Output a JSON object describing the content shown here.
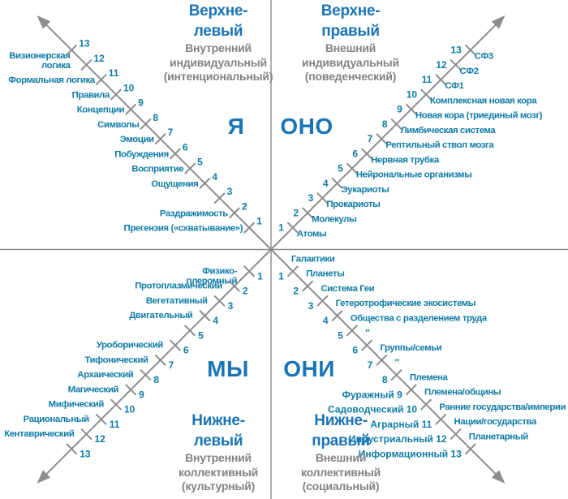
{
  "colors": {
    "title_blue": "#1a74b6",
    "label_teal": "#0e7ba6",
    "subtitle_gray": "#818285",
    "line_gray": "#8a8c8e"
  },
  "quadrants": {
    "upper_left": {
      "title_lines": [
        "Верхне-",
        "левый"
      ],
      "subtitle_lines": [
        "Внутренний",
        "индивидуальный",
        "(интенциональный)"
      ],
      "pronoun": "Я",
      "ticks": [
        {
          "n": 1,
          "label": "Прегензия («схватывание»)"
        },
        {
          "n": 2,
          "label": "Раздражимость"
        },
        {
          "n": 3,
          "label": ""
        },
        {
          "n": 4,
          "label": "Ощущения"
        },
        {
          "n": 5,
          "label": "Восприятие"
        },
        {
          "n": 6,
          "label": "Побуждения"
        },
        {
          "n": 7,
          "label": "Эмоции"
        },
        {
          "n": 8,
          "label": "Символы"
        },
        {
          "n": 9,
          "label": "Концепции"
        },
        {
          "n": 10,
          "label": "Правила"
        },
        {
          "n": 11,
          "label": "Формальная логика"
        },
        {
          "n": 12,
          "label_lines": [
            "Визионерская",
            "логика"
          ]
        },
        {
          "n": 13,
          "label": ""
        }
      ]
    },
    "upper_right": {
      "title_lines": [
        "Верхне-",
        "правый"
      ],
      "subtitle_lines": [
        "Внешний",
        "индивидуальный",
        "(поведенческий)"
      ],
      "pronoun": "ОНО",
      "ticks": [
        {
          "n": 1,
          "label": "Атомы"
        },
        {
          "n": 2,
          "label": "Молекулы"
        },
        {
          "n": 3,
          "label": "Прокариоты"
        },
        {
          "n": 4,
          "label": "Эукариоты"
        },
        {
          "n": 5,
          "label": "Нейрональные организмы"
        },
        {
          "n": 6,
          "label": "Нервная трубка"
        },
        {
          "n": 7,
          "label": "Рептильный ствол мозга"
        },
        {
          "n": 8,
          "label": "Лимбическая система"
        },
        {
          "n": 9,
          "label": "Новая кора (триединый мозг)"
        },
        {
          "n": 10,
          "label": "Комплексная новая кора"
        },
        {
          "n": 11,
          "label": "СФ1"
        },
        {
          "n": 12,
          "label": "СФ2"
        },
        {
          "n": 13,
          "label": "СФ3"
        }
      ]
    },
    "lower_left": {
      "title_lines": [
        "Нижне-",
        "левый"
      ],
      "subtitle_lines": [
        "Внутренний",
        "коллективный",
        "(культурный)"
      ],
      "pronoun": "МЫ",
      "ticks": [
        {
          "n": 1,
          "label_lines": [
            "Физико-",
            "плеромный"
          ]
        },
        {
          "n": 2,
          "label": "Протоплазмический"
        },
        {
          "n": 3,
          "label": "Вегетативный"
        },
        {
          "n": 4,
          "label": "Двигательный"
        },
        {
          "n": 5,
          "label": ""
        },
        {
          "n": 6,
          "label": "Уроборический"
        },
        {
          "n": 7,
          "label": "Тифонический"
        },
        {
          "n": 8,
          "label": "Архаический"
        },
        {
          "n": 9,
          "label": "Магический"
        },
        {
          "n": 10,
          "label": "Мифический"
        },
        {
          "n": 11,
          "label": "Рациональный"
        },
        {
          "n": 12,
          "label": "Кентаврический"
        },
        {
          "n": 13,
          "label": ""
        }
      ]
    },
    "lower_right": {
      "title_lines": [
        "Нижне-",
        "правый"
      ],
      "subtitle_lines": [
        "Внешний",
        "коллективный",
        "(социальный)"
      ],
      "pronoun": "ОНИ",
      "ticks": [
        {
          "n": 1,
          "right_label": "Галактики"
        },
        {
          "n": 2,
          "right_label": "Планеты"
        },
        {
          "n": 3,
          "right_label": "Система Геи"
        },
        {
          "n": 4,
          "right_label": "Гетеротрофические экосистемы"
        },
        {
          "n": 5,
          "right_label": "Общества с разделением труда"
        },
        {
          "n": 6,
          "right_label": "″"
        },
        {
          "n": 7,
          "right_label": "Группы/семьи"
        },
        {
          "n": 8,
          "right_label": "″"
        },
        {
          "n": 9,
          "left_label": "Фуражный",
          "right_label": "Племена"
        },
        {
          "n": 10,
          "left_label": "Садоводческий",
          "right_label": "Племена/общины"
        },
        {
          "n": 11,
          "left_label": "Аграрный",
          "right_label": "Ранние государства/империи"
        },
        {
          "n": 12,
          "left_label": "Индустриальный",
          "right_label": "Нации/государства"
        },
        {
          "n": 13,
          "left_label": "Информационный",
          "right_label": "Планетарный"
        }
      ]
    }
  }
}
